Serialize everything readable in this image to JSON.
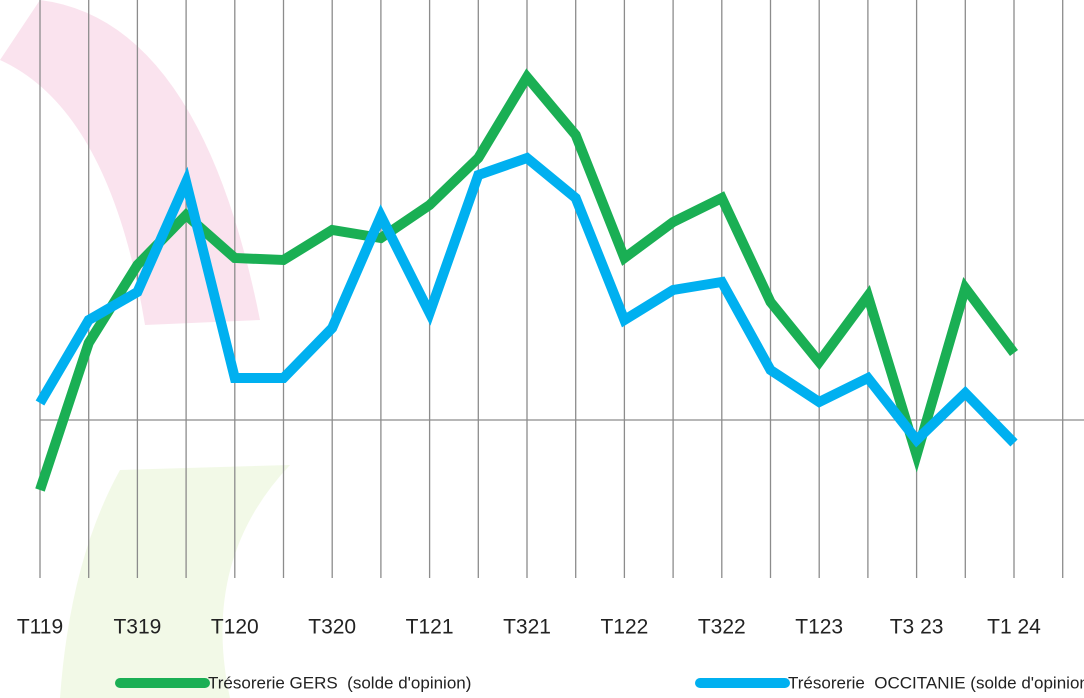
{
  "chart_data": {
    "type": "line",
    "categories": [
      "T119",
      null,
      "T319",
      null,
      "T120",
      null,
      "T320",
      null,
      "T121",
      null,
      "T321",
      null,
      "T122",
      null,
      "T322",
      null,
      "T123",
      null,
      "T3 23",
      null,
      "T1 24"
    ],
    "series": [
      {
        "name": "Trésorerie GERS  (solde d'opinion)",
        "color": "#1aaf54",
        "values": [
          -7,
          7.7,
          15.5,
          20.5,
          16.2,
          16,
          19,
          18.2,
          21.5,
          26.2,
          34.3,
          28.5,
          16.2,
          19.8,
          22.2,
          11.8,
          5.8,
          12.4,
          -3.5,
          13.2,
          6.7
        ]
      },
      {
        "name": "Trésorerie  OCCITANIE (solde d'opinion)",
        "color": "#00b0f0",
        "values": [
          1.7,
          10,
          12.8,
          23.8,
          4.2,
          4.2,
          9.2,
          20.4,
          10.7,
          24.5,
          26.2,
          22.2,
          10,
          13,
          13.8,
          5,
          1.8,
          4.2,
          -2,
          2.7,
          -2.3
        ]
      }
    ],
    "ylim": [
      -15.8,
      42
    ],
    "grid": true
  }
}
